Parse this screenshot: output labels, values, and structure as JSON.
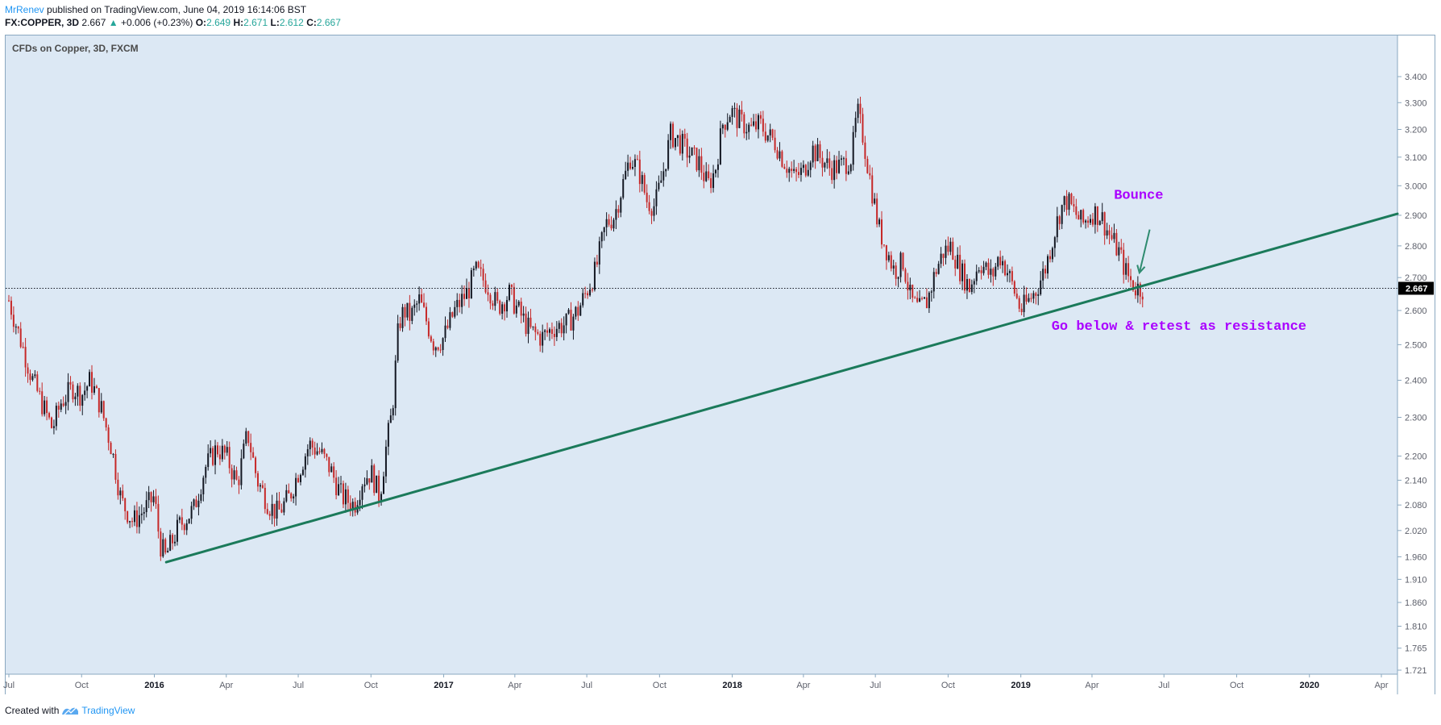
{
  "header": {
    "author": "MrRenev",
    "published": "published on TradingView.com, June 04, 2019 16:14:06 BST",
    "symbol": "FX:COPPER, 3D",
    "price": "2.667",
    "change_arrow": "▲",
    "change": "+0.006 (+0.23%)",
    "o_label": "O:",
    "o_value": "2.649",
    "h_label": "H:",
    "h_value": "2.671",
    "l_label": "L:",
    "l_value": "2.612",
    "c_label": "C:",
    "c_value": "2.667"
  },
  "footer": {
    "created_with": "Created with",
    "brand": "TradingView"
  },
  "chart_data": {
    "type": "candlestick",
    "title": "CFDs on Copper, 3D, FXCM",
    "price_scale": "log",
    "ylim": [
      1.7,
      3.43
    ],
    "grid": false,
    "background": "#dce8f4",
    "up_color": "#131722",
    "down_color": "#c62828",
    "trendline_color": "#1b7a5a",
    "annotation_color": "#aa00ff",
    "y_ticks": [
      "3.400",
      "3.300",
      "3.200",
      "3.100",
      "3.000",
      "2.900",
      "2.800",
      "2.700",
      "2.600",
      "2.500",
      "2.400",
      "2.300",
      "2.200",
      "2.140",
      "2.080",
      "2.020",
      "1.960",
      "1.910",
      "1.860",
      "1.810",
      "1.765",
      "1.721"
    ],
    "x_ticks": [
      {
        "label": "Jul",
        "date": "2015-07-01",
        "bold": false
      },
      {
        "label": "Oct",
        "date": "2015-10-01",
        "bold": false
      },
      {
        "label": "2016",
        "date": "2016-01-01",
        "bold": true
      },
      {
        "label": "Apr",
        "date": "2016-04-01",
        "bold": false
      },
      {
        "label": "Jul",
        "date": "2016-07-01",
        "bold": false
      },
      {
        "label": "Oct",
        "date": "2016-10-01",
        "bold": false
      },
      {
        "label": "2017",
        "date": "2017-01-01",
        "bold": true
      },
      {
        "label": "Apr",
        "date": "2017-04-01",
        "bold": false
      },
      {
        "label": "Jul",
        "date": "2017-07-01",
        "bold": false
      },
      {
        "label": "Oct",
        "date": "2017-10-01",
        "bold": false
      },
      {
        "label": "2018",
        "date": "2018-01-01",
        "bold": true
      },
      {
        "label": "Apr",
        "date": "2018-04-01",
        "bold": false
      },
      {
        "label": "Jul",
        "date": "2018-07-01",
        "bold": false
      },
      {
        "label": "Oct",
        "date": "2018-10-01",
        "bold": false
      },
      {
        "label": "2019",
        "date": "2019-01-01",
        "bold": true
      },
      {
        "label": "Apr",
        "date": "2019-04-01",
        "bold": false
      },
      {
        "label": "Jul",
        "date": "2019-07-01",
        "bold": false
      },
      {
        "label": "Oct",
        "date": "2019-10-01",
        "bold": false
      },
      {
        "label": "2020",
        "date": "2020-01-01",
        "bold": true
      },
      {
        "label": "Apr",
        "date": "2020-04-01",
        "bold": false
      }
    ],
    "last_price": 2.667,
    "last_price_label": "2.667",
    "close_path": [
      [
        "2015-07-01",
        2.63
      ],
      [
        "2015-07-15",
        2.52
      ],
      [
        "2015-07-31",
        2.4
      ],
      [
        "2015-08-15",
        2.32
      ],
      [
        "2015-08-25",
        2.27
      ],
      [
        "2015-09-05",
        2.34
      ],
      [
        "2015-09-20",
        2.38
      ],
      [
        "2015-10-01",
        2.36
      ],
      [
        "2015-10-12",
        2.4
      ],
      [
        "2015-10-25",
        2.33
      ],
      [
        "2015-11-08",
        2.22
      ],
      [
        "2015-11-20",
        2.09
      ],
      [
        "2015-12-05",
        2.04
      ],
      [
        "2015-12-20",
        2.07
      ],
      [
        "2016-01-01",
        2.1
      ],
      [
        "2016-01-08",
        1.99
      ],
      [
        "2016-01-15",
        1.96
      ],
      [
        "2016-02-01",
        2.03
      ],
      [
        "2016-02-20",
        2.07
      ],
      [
        "2016-03-05",
        2.17
      ],
      [
        "2016-03-20",
        2.22
      ],
      [
        "2016-04-01",
        2.2
      ],
      [
        "2016-04-15",
        2.13
      ],
      [
        "2016-04-28",
        2.26
      ],
      [
        "2016-05-10",
        2.14
      ],
      [
        "2016-05-25",
        2.08
      ],
      [
        "2016-06-05",
        2.06
      ],
      [
        "2016-06-20",
        2.1
      ],
      [
        "2016-07-01",
        2.16
      ],
      [
        "2016-07-15",
        2.23
      ],
      [
        "2016-07-28",
        2.21
      ],
      [
        "2016-08-10",
        2.17
      ],
      [
        "2016-08-25",
        2.1
      ],
      [
        "2016-09-10",
        2.08
      ],
      [
        "2016-09-20",
        2.14
      ],
      [
        "2016-10-01",
        2.16
      ],
      [
        "2016-10-12",
        2.1
      ],
      [
        "2016-10-20",
        2.22
      ],
      [
        "2016-10-28",
        2.32
      ],
      [
        "2016-11-05",
        2.56
      ],
      [
        "2016-11-12",
        2.6
      ],
      [
        "2016-11-20",
        2.58
      ],
      [
        "2016-12-01",
        2.63
      ],
      [
        "2016-12-10",
        2.57
      ],
      [
        "2016-12-20",
        2.5
      ],
      [
        "2017-01-01",
        2.52
      ],
      [
        "2017-01-15",
        2.6
      ],
      [
        "2017-02-01",
        2.66
      ],
      [
        "2017-02-10",
        2.72
      ],
      [
        "2017-02-25",
        2.68
      ],
      [
        "2017-03-10",
        2.61
      ],
      [
        "2017-03-25",
        2.65
      ],
      [
        "2017-04-05",
        2.6
      ],
      [
        "2017-04-20",
        2.54
      ],
      [
        "2017-05-05",
        2.52
      ],
      [
        "2017-05-20",
        2.55
      ],
      [
        "2017-06-05",
        2.56
      ],
      [
        "2017-06-20",
        2.6
      ],
      [
        "2017-07-01",
        2.66
      ],
      [
        "2017-07-12",
        2.72
      ],
      [
        "2017-07-25",
        2.87
      ],
      [
        "2017-08-05",
        2.9
      ],
      [
        "2017-08-15",
        3.0
      ],
      [
        "2017-08-25",
        3.1
      ],
      [
        "2017-09-05",
        3.05
      ],
      [
        "2017-09-15",
        2.95
      ],
      [
        "2017-09-25",
        2.93
      ],
      [
        "2017-10-05",
        3.04
      ],
      [
        "2017-10-15",
        3.18
      ],
      [
        "2017-10-25",
        3.16
      ],
      [
        "2017-11-05",
        3.12
      ],
      [
        "2017-11-20",
        3.08
      ],
      [
        "2017-12-01",
        3.0
      ],
      [
        "2017-12-10",
        3.05
      ],
      [
        "2017-12-20",
        3.22
      ],
      [
        "2017-12-30",
        3.27
      ],
      [
        "2018-01-10",
        3.23
      ],
      [
        "2018-01-25",
        3.2
      ],
      [
        "2018-02-05",
        3.22
      ],
      [
        "2018-02-15",
        3.18
      ],
      [
        "2018-02-25",
        3.15
      ],
      [
        "2018-03-05",
        3.1
      ],
      [
        "2018-03-20",
        3.03
      ],
      [
        "2018-04-01",
        3.05
      ],
      [
        "2018-04-12",
        3.13
      ],
      [
        "2018-04-25",
        3.09
      ],
      [
        "2018-05-05",
        3.06
      ],
      [
        "2018-05-20",
        3.07
      ],
      [
        "2018-06-01",
        3.1
      ],
      [
        "2018-06-08",
        3.27
      ],
      [
        "2018-06-15",
        3.18
      ],
      [
        "2018-06-25",
        3.01
      ],
      [
        "2018-07-05",
        2.86
      ],
      [
        "2018-07-15",
        2.79
      ],
      [
        "2018-07-25",
        2.72
      ],
      [
        "2018-08-05",
        2.75
      ],
      [
        "2018-08-15",
        2.63
      ],
      [
        "2018-08-25",
        2.6
      ],
      [
        "2018-09-05",
        2.63
      ],
      [
        "2018-09-15",
        2.72
      ],
      [
        "2018-09-25",
        2.78
      ],
      [
        "2018-10-05",
        2.8
      ],
      [
        "2018-10-15",
        2.73
      ],
      [
        "2018-10-28",
        2.67
      ],
      [
        "2018-11-10",
        2.75
      ],
      [
        "2018-11-25",
        2.7
      ],
      [
        "2018-12-05",
        2.77
      ],
      [
        "2018-12-15",
        2.72
      ],
      [
        "2018-12-25",
        2.65
      ],
      [
        "2019-01-01",
        2.6
      ],
      [
        "2019-01-08",
        2.62
      ],
      [
        "2019-01-20",
        2.66
      ],
      [
        "2019-02-01",
        2.73
      ],
      [
        "2019-02-10",
        2.82
      ],
      [
        "2019-02-20",
        2.92
      ],
      [
        "2019-02-28",
        2.95
      ],
      [
        "2019-03-10",
        2.91
      ],
      [
        "2019-03-20",
        2.87
      ],
      [
        "2019-04-01",
        2.91
      ],
      [
        "2019-04-12",
        2.9
      ],
      [
        "2019-04-22",
        2.84
      ],
      [
        "2019-05-05",
        2.78
      ],
      [
        "2019-05-15",
        2.71
      ],
      [
        "2019-05-25",
        2.67
      ],
      [
        "2019-06-04",
        2.667
      ]
    ],
    "trendline": {
      "start": {
        "date": "2016-01-16",
        "price": 1.948
      },
      "end": {
        "date": "2020-05-01",
        "price": 2.905
      }
    },
    "annotations": [
      {
        "text": "Bounce",
        "date": "2019-05-30",
        "price": 2.955
      },
      {
        "text": "Go below & retest as resistance",
        "date": "2019-07-20",
        "price": 2.543
      }
    ],
    "arrow": {
      "from": {
        "date": "2019-06-13",
        "price": 2.853
      },
      "to": {
        "date": "2019-05-31",
        "price": 2.715
      }
    }
  }
}
